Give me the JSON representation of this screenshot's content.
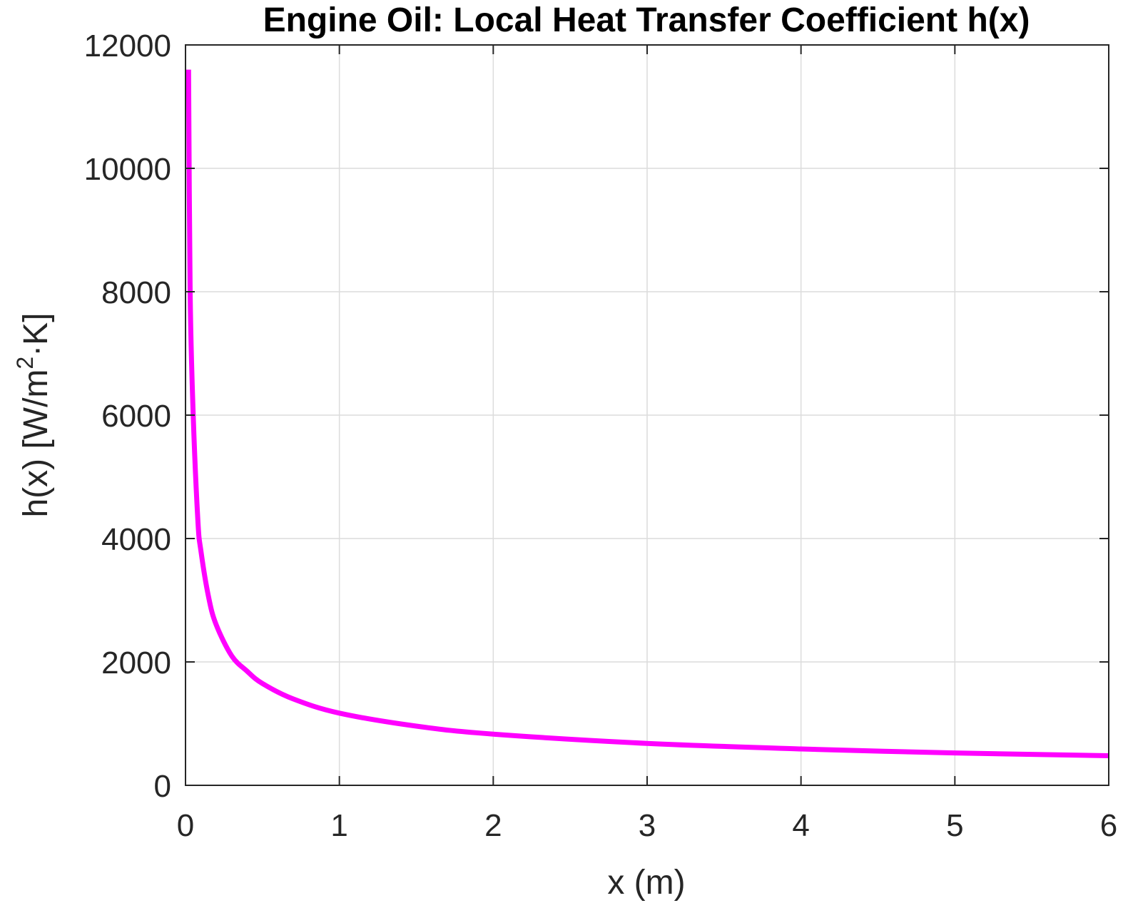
{
  "chart_data": {
    "type": "line",
    "title": "Engine Oil: Local Heat Transfer Coefficient h(x)",
    "xlabel": "x (m)",
    "ylabel_main": "h(x) [W/m",
    "ylabel_sup": "2",
    "ylabel_tail": "·K]",
    "xlim": [
      0,
      6
    ],
    "ylim": [
      0,
      12000
    ],
    "xticks": [
      0,
      1,
      2,
      3,
      4,
      5,
      6
    ],
    "yticks": [
      0,
      2000,
      4000,
      6000,
      8000,
      10000,
      12000
    ],
    "xtick_labels": [
      "0",
      "1",
      "2",
      "3",
      "4",
      "5",
      "6"
    ],
    "ytick_labels": [
      "0",
      "2000",
      "4000",
      "6000",
      "8000",
      "10000",
      "12000"
    ],
    "grid": true,
    "series": [
      {
        "color": "#ff00ff",
        "x": [
          0.02,
          0.03,
          0.05,
          0.08,
          0.1,
          0.15,
          0.2,
          0.3,
          0.4,
          0.5,
          0.7,
          1.0,
          1.5,
          2.0,
          3.0,
          4.0,
          5.0,
          6.0
        ],
        "y": [
          11600,
          8000,
          6000,
          4300,
          3800,
          3050,
          2600,
          2100,
          1850,
          1650,
          1400,
          1170,
          960,
          830,
          680,
          590,
          525,
          480
        ]
      }
    ]
  }
}
